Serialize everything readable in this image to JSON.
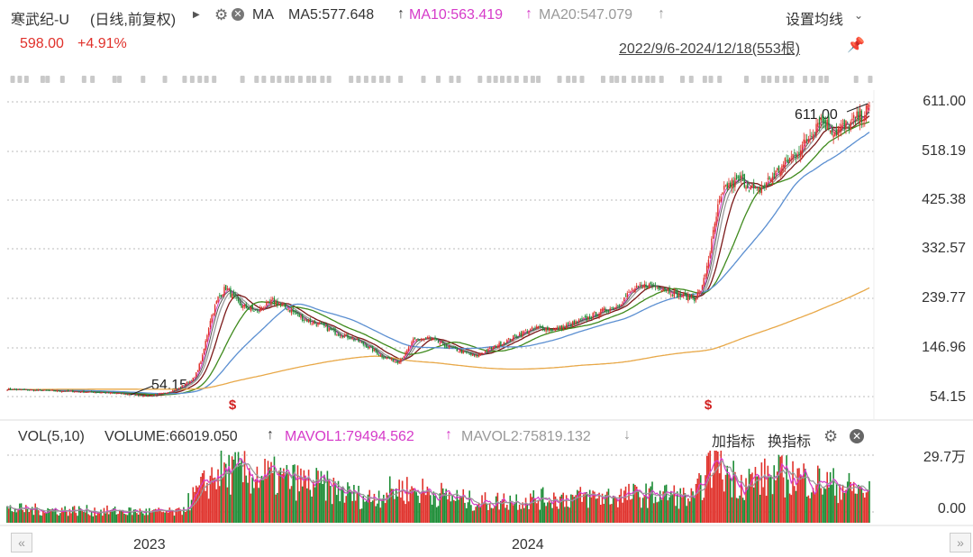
{
  "header": {
    "stock_name": "寒武纪-U",
    "period": "(日线,前复权)",
    "expand_icon": "triangle-right-icon",
    "ma_label": "MA",
    "ma5": "MA5:577.648",
    "ma10": "MA10:563.419",
    "ma20": "MA20:547.079",
    "settings": "设置均线",
    "price": "598.00",
    "change": "+4.91%",
    "date_range": "2022/9/6-2024/12/18(553根)",
    "colors": {
      "ma5": "#333333",
      "ma10": "#d63bc9",
      "ma20": "#999999",
      "up": "#e0312b",
      "down": "#1c8c35"
    }
  },
  "volume_header": {
    "title": "VOL(5,10)",
    "volume": "VOLUME:66019.050",
    "mavol1": "MAVOL1:79494.562",
    "mavol2": "MAVOL2:75819.132",
    "add_indicator": "加指标",
    "switch_indicator": "换指标"
  },
  "chart_data": {
    "type": "candlestick",
    "y_ticks": [
      "611.00",
      "518.19",
      "425.38",
      "332.57",
      "239.77",
      "146.96",
      "54.15"
    ],
    "ylim": [
      54.15,
      611.0
    ],
    "annotations": {
      "high": "611.00",
      "low": "54.15"
    },
    "x_labels": [
      "2023",
      "2024"
    ],
    "volume_ticks": [
      "29.7万",
      "0.00"
    ],
    "close_series": [
      [
        0,
        68
      ],
      [
        20,
        66
      ],
      [
        40,
        64
      ],
      [
        60,
        62
      ],
      [
        80,
        58
      ],
      [
        90,
        55
      ],
      [
        100,
        60
      ],
      [
        110,
        70
      ],
      [
        120,
        90
      ],
      [
        125,
        130
      ],
      [
        130,
        200
      ],
      [
        135,
        240
      ],
      [
        140,
        260
      ],
      [
        145,
        240
      ],
      [
        150,
        225
      ],
      [
        160,
        215
      ],
      [
        170,
        235
      ],
      [
        180,
        220
      ],
      [
        190,
        200
      ],
      [
        200,
        190
      ],
      [
        210,
        175
      ],
      [
        220,
        165
      ],
      [
        230,
        150
      ],
      [
        240,
        130
      ],
      [
        250,
        120
      ],
      [
        255,
        135
      ],
      [
        260,
        160
      ],
      [
        270,
        165
      ],
      [
        280,
        150
      ],
      [
        290,
        140
      ],
      [
        300,
        130
      ],
      [
        310,
        145
      ],
      [
        320,
        160
      ],
      [
        330,
        175
      ],
      [
        340,
        185
      ],
      [
        350,
        180
      ],
      [
        360,
        190
      ],
      [
        370,
        200
      ],
      [
        380,
        215
      ],
      [
        390,
        225
      ],
      [
        400,
        255
      ],
      [
        410,
        265
      ],
      [
        420,
        260
      ],
      [
        430,
        245
      ],
      [
        440,
        240
      ],
      [
        445,
        260
      ],
      [
        450,
        330
      ],
      [
        455,
        410
      ],
      [
        460,
        450
      ],
      [
        470,
        465
      ],
      [
        480,
        440
      ],
      [
        490,
        470
      ],
      [
        500,
        500
      ],
      [
        510,
        530
      ],
      [
        520,
        580
      ],
      [
        530,
        555
      ],
      [
        540,
        570
      ],
      [
        552,
        598
      ]
    ],
    "ma_series": [
      {
        "name": "MA20",
        "color": "#9a9a9a",
        "lag": 8
      },
      {
        "name": "MA60",
        "color": "#7b1818",
        "lag": 14
      },
      {
        "name": "MA120",
        "color": "#3f8a1d",
        "lag": 30
      },
      {
        "name": "MA250",
        "color": "#5b8fd1",
        "lag": 55
      },
      {
        "name": "MA500",
        "color": "#e8a848",
        "lag": 110
      }
    ],
    "volume_profile": [
      [
        0,
        0.2
      ],
      [
        110,
        0.15
      ],
      [
        120,
        0.4
      ],
      [
        135,
        0.75
      ],
      [
        160,
        0.7
      ],
      [
        200,
        0.55
      ],
      [
        230,
        0.35
      ],
      [
        250,
        0.5
      ],
      [
        270,
        0.45
      ],
      [
        300,
        0.3
      ],
      [
        340,
        0.35
      ],
      [
        380,
        0.38
      ],
      [
        420,
        0.42
      ],
      [
        440,
        0.35
      ],
      [
        450,
        0.85
      ],
      [
        470,
        0.6
      ],
      [
        500,
        0.7
      ],
      [
        530,
        0.55
      ],
      [
        552,
        0.45
      ]
    ],
    "grid": true
  }
}
